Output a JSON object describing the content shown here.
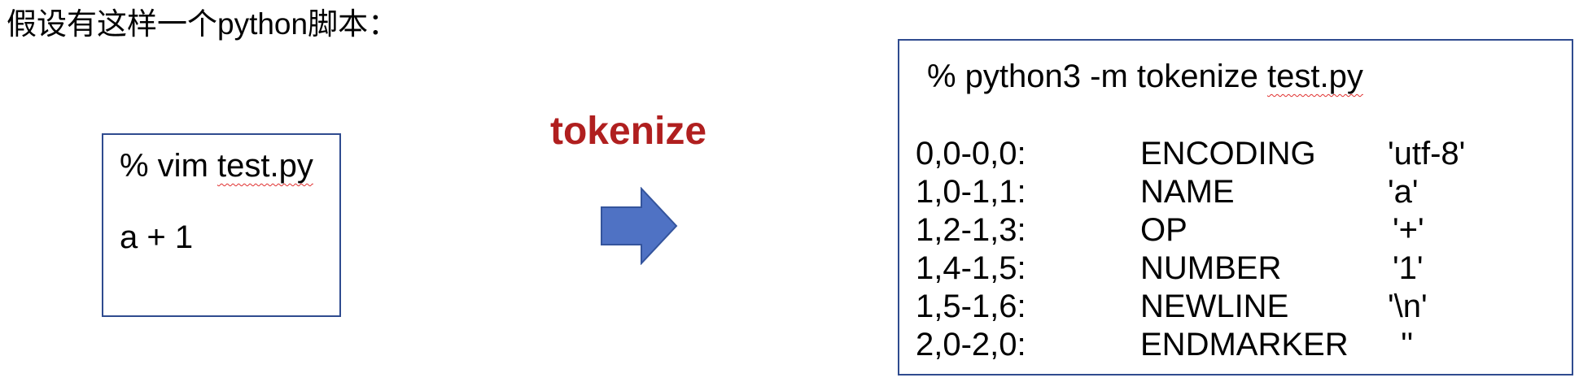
{
  "heading": "假设有这样一个python脚本：",
  "source_box": {
    "command_prefix": "% vim ",
    "command_file": "test.py",
    "code": "a + 1"
  },
  "arrow": {
    "label": "tokenize",
    "color": "#4f72c4",
    "label_color": "#b01f1f"
  },
  "output_box": {
    "command_prefix": "% python3 -m tokenize ",
    "command_file": "test.py",
    "tokens": [
      {
        "position": "0,0-0,0:",
        "type": "ENCODING",
        "string": "'utf-8'"
      },
      {
        "position": "1,0-1,1:",
        "type": "NAME",
        "string": "'a'"
      },
      {
        "position": "1,2-1,3:",
        "type": "OP",
        "string": "'+'"
      },
      {
        "position": "1,4-1,5:",
        "type": "NUMBER",
        "string": "'1'"
      },
      {
        "position": "1,5-1,6:",
        "type": "NEWLINE",
        "string": "'\\n'"
      },
      {
        "position": "2,0-2,0:",
        "type": "ENDMARKER",
        "string": "''"
      }
    ]
  }
}
